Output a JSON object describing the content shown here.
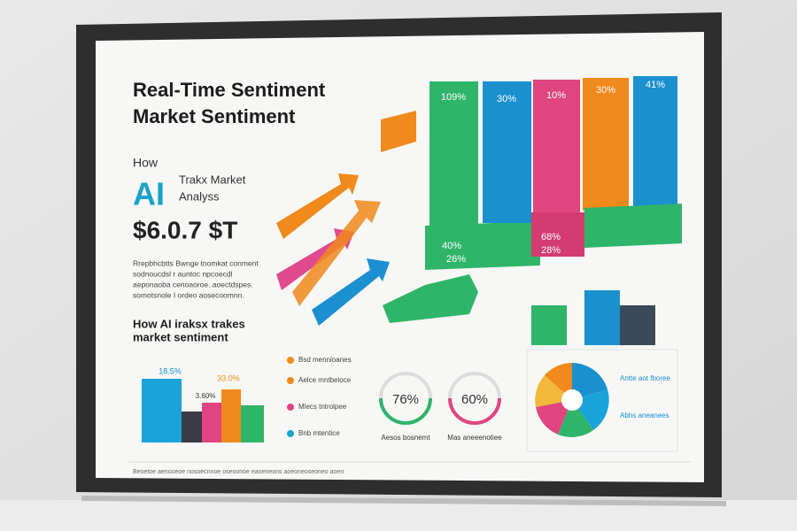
{
  "header": {
    "title_line1": "Real-Time Sentiment",
    "title_line2": "Market Sentiment"
  },
  "intro": {
    "how": "How",
    "ai": "AI",
    "caption_line1": "Trakx Market",
    "caption_line2": "Analyss",
    "figure": "$6.0.7 $T"
  },
  "body_text": [
    "Rrepbhcbtts Bwnge tnomkat conment",
    "sodnoucdsl r auntoc npcoecdl",
    "aeponaoba cenoaoroe. aoectdspes.",
    "somotsnole I ordeo aosecoomnn."
  ],
  "subheading": [
    "How AI iraksx trakes",
    "market sentiment"
  ],
  "column_labels": [
    "109%",
    "30%",
    "10%",
    "30%",
    "41%"
  ],
  "base_labels": [
    "40%",
    "26%",
    "68%",
    "28%"
  ],
  "mini_chart": {
    "labels": [
      "18.5%",
      "33.0%",
      "3.60%"
    ]
  },
  "legend_items": [
    "Bsd mennioanes",
    "Aelce mntbeloce",
    "Mlecs tntrolpee",
    "Bnb mtentice"
  ],
  "gauges": [
    {
      "value": "76%",
      "caption": "Aesos bosnemt"
    },
    {
      "value": "60%",
      "caption": "Mas aneeenotiee"
    }
  ],
  "pie_legend": [
    "Antte aot fboree",
    "Abhs aneanees"
  ],
  "footer": "Beoetoe aenooeoe nosoecnnoe oseoonoe eaoeneons aoeoneoseoneo aoen"
}
